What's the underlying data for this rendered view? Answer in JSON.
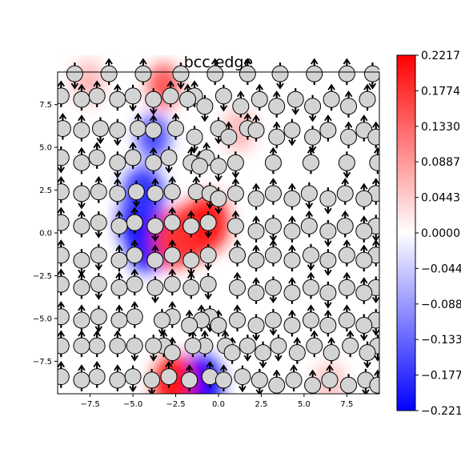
{
  "chart_data": {
    "type": "heatmap",
    "title": "bcc edge",
    "xlabel": "",
    "ylabel": "",
    "xlim": [
      -9.4,
      9.4
    ],
    "ylim": [
      -9.4,
      9.4
    ],
    "x_ticks": [
      -7.5,
      -5.0,
      -2.5,
      0.0,
      2.5,
      5.0,
      7.5
    ],
    "x_tick_labels": [
      "−7.5",
      "−5.0",
      "−2.5",
      "0.0",
      "2.5",
      "5.0",
      "7.5"
    ],
    "y_ticks": [
      7.5,
      5.0,
      2.5,
      0.0,
      -2.5,
      -5.0,
      -7.5
    ],
    "y_tick_labels": [
      "7.5",
      "5.0",
      "2.5",
      "0.0",
      "−2.5",
      "−5.0",
      "−7.5"
    ],
    "colormap": "bwr",
    "colors": {
      "low": "#0000ff",
      "mid": "#ffffff",
      "high": "#ff0000",
      "atom_fill": "#d3d3d3",
      "atom_edge": "#000000",
      "arrow": "#000000"
    },
    "colorbar": {
      "range": [
        -0.2217,
        0.2217
      ],
      "ticks": [
        0.2217,
        0.1774,
        0.133,
        0.0887,
        0.0443,
        0.0,
        -0.0443,
        -0.0887,
        -0.133,
        -0.1774,
        -0.2217
      ],
      "tick_labels": [
        "0.2217",
        "0.1774",
        "0.1330",
        "0.0887",
        "0.0443",
        "0.0000",
        "−0.0443",
        "−0.0887",
        "−0.1330",
        "−0.1774",
        "−0.2217"
      ]
    },
    "field_features": [
      {
        "x": -4.6,
        "y": 0.6,
        "value": -0.2217
      },
      {
        "x": -4.4,
        "y": 2.2,
        "value": -0.18
      },
      {
        "x": -4.2,
        "y": -0.6,
        "value": -0.2
      },
      {
        "x": -3.8,
        "y": 5.6,
        "value": -0.16
      },
      {
        "x": -1.6,
        "y": 0.0,
        "value": 0.2217
      },
      {
        "x": -0.6,
        "y": 0.6,
        "value": 0.2
      },
      {
        "x": -2.6,
        "y": -0.4,
        "value": 0.18
      },
      {
        "x": -1.0,
        "y": -8.8,
        "value": -0.2217
      },
      {
        "x": -2.6,
        "y": -8.8,
        "value": 0.2
      },
      {
        "x": -3.2,
        "y": 8.6,
        "value": 0.15
      },
      {
        "x": -7.6,
        "y": 8.8,
        "value": 0.06
      },
      {
        "x": 1.2,
        "y": 6.0,
        "value": 0.06
      },
      {
        "x": 6.5,
        "y": -8.8,
        "value": 0.05
      }
    ],
    "atom_rows": [
      {
        "y": 9.3,
        "x": [
          -8.4,
          -6.4,
          -4.4,
          -2.2,
          -0.2,
          1.7,
          3.6,
          5.6,
          7.5,
          9.0
        ]
      },
      {
        "y": 8.0,
        "x": [
          -9.2,
          -7.1,
          -5.0,
          -2.8,
          -1.4,
          0.3
        ]
      },
      {
        "y": 7.8,
        "x": [
          -8.0,
          -5.9,
          -3.8,
          -1.8,
          2.4,
          4.5,
          6.6,
          8.7
        ]
      },
      {
        "y": 7.4,
        "x": [
          -0.8,
          1.3,
          3.4,
          5.5,
          7.6
        ]
      },
      {
        "y": 6.1,
        "x": [
          -9.1,
          -6.9,
          -4.7,
          -2.5,
          0.0,
          1.7
        ]
      },
      {
        "y": 6.0,
        "x": [
          -8.0,
          -5.9,
          -3.8,
          2.2,
          4.3,
          6.4,
          8.5
        ]
      },
      {
        "y": 5.6,
        "x": [
          -1.4,
          0.6,
          3.4,
          5.5,
          7.6,
          9.2
        ]
      },
      {
        "y": 4.4,
        "x": [
          -9.2,
          -7.1,
          -5.0,
          -2.9,
          -0.7
        ]
      },
      {
        "y": 4.1,
        "x": [
          -8.0,
          -5.9,
          -3.8,
          -1.6,
          1.0,
          3.2,
          5.4,
          7.5,
          9.3
        ]
      },
      {
        "y": 3.9,
        "x": [
          -1.1,
          0.0
        ]
      },
      {
        "y": 2.4,
        "x": [
          -9.2,
          -7.0,
          -4.8,
          -2.7,
          -1.3
        ]
      },
      {
        "y": 2.3,
        "x": [
          -8.0,
          -5.9,
          -3.7,
          -0.5,
          1.0,
          3.2,
          5.3,
          7.4,
          9.2
        ]
      },
      {
        "y": 2.0,
        "x": [
          0.0,
          2.2,
          4.3,
          6.4,
          8.5
        ]
      },
      {
        "y": 0.6,
        "x": [
          -9.2,
          -7.0,
          -4.9,
          -2.7,
          -0.6
        ]
      },
      {
        "y": 0.4,
        "x": [
          -8.0,
          -5.8,
          -3.7,
          -1.6,
          1.0,
          3.2,
          5.3,
          7.4,
          9.2
        ]
      },
      {
        "y": 0.1,
        "x": [
          2.2,
          4.3,
          6.4,
          8.5
        ]
      },
      {
        "y": -1.3,
        "x": [
          -9.2,
          -7.0,
          -4.9,
          -2.7,
          -0.6,
          1.1,
          3.2,
          5.4,
          7.5,
          9.2
        ]
      },
      {
        "y": -1.6,
        "x": [
          -8.0,
          -5.8,
          -3.7,
          -1.6,
          2.2,
          4.3,
          6.4,
          8.5
        ]
      },
      {
        "y": -3.0,
        "x": [
          -9.2,
          -7.0,
          -4.9,
          -2.7,
          -0.6
        ]
      },
      {
        "y": -3.2,
        "x": [
          -8.0,
          -5.8,
          -3.7,
          -1.6,
          1.1,
          3.2,
          5.4,
          7.5,
          9.2
        ]
      },
      {
        "y": -3.5,
        "x": [
          2.2,
          4.3,
          6.4,
          8.5
        ]
      },
      {
        "y": -4.9,
        "x": [
          -9.2,
          -7.0,
          -4.9,
          -2.7,
          -0.5
        ]
      },
      {
        "y": -5.1,
        "x": [
          -8.0,
          -5.8,
          -3.3,
          -1.0,
          1.1,
          3.2,
          5.4,
          7.5,
          9.2
        ]
      },
      {
        "y": -5.4,
        "x": [
          -1.7,
          0.0,
          2.2,
          4.3,
          6.4,
          8.5
        ]
      },
      {
        "y": -6.6,
        "x": [
          -9.2,
          -7.1,
          -4.9,
          -3.2,
          -0.8,
          1.7
        ]
      },
      {
        "y": -6.6,
        "x": [
          -8.0,
          -5.9,
          -3.8,
          -1.5,
          0.4,
          3.5,
          5.6,
          7.7,
          9.3
        ]
      },
      {
        "y": -7.0,
        "x": [
          -2.7,
          0.8,
          2.6,
          4.6,
          6.6,
          8.7
        ]
      },
      {
        "y": -8.4,
        "x": [
          -9.2,
          -7.1,
          -5.0,
          -2.9,
          -0.5,
          1.4
        ]
      },
      {
        "y": -8.6,
        "x": [
          -8.0,
          -5.9,
          -3.9,
          -1.7,
          0.3,
          2.4,
          4.4,
          6.5,
          8.6
        ]
      },
      {
        "y": -8.9,
        "x": [
          3.4,
          5.5,
          7.6,
          9.3
        ]
      }
    ]
  }
}
